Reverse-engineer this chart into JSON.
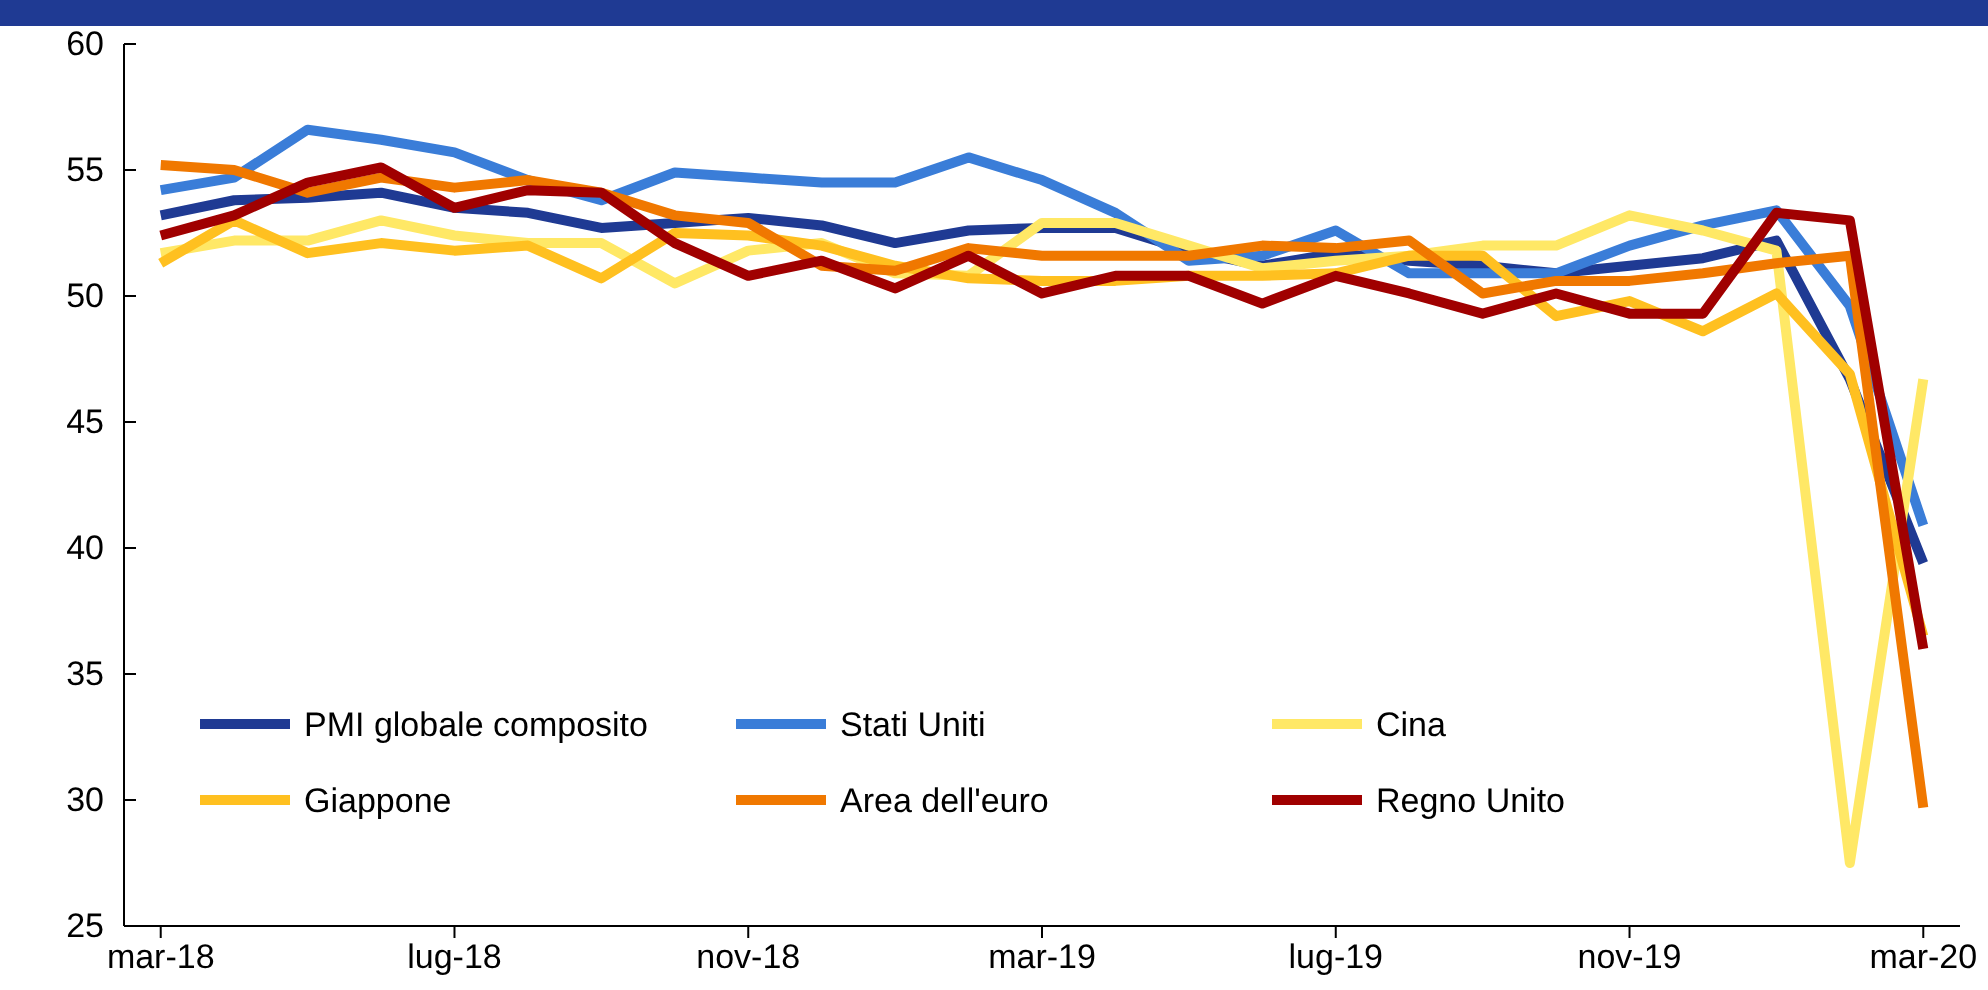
{
  "chart_data": {
    "type": "line",
    "categories": [
      "mar-18",
      null,
      null,
      null,
      "lug-18",
      null,
      null,
      null,
      "nov-18",
      null,
      null,
      null,
      "mar-19",
      null,
      null,
      null,
      "lug-19",
      null,
      null,
      null,
      "nov-19",
      null,
      null,
      null,
      "mar-20"
    ],
    "series": [
      {
        "name": "PMI globale composito",
        "color": "#1f3a93",
        "values": [
          53.2,
          53.8,
          53.9,
          54.1,
          53.5,
          53.3,
          52.7,
          52.9,
          53.1,
          52.8,
          52.1,
          52.6,
          52.7,
          52.7,
          51.8,
          51.2,
          51.7,
          51.4,
          51.2,
          50.9,
          51.2,
          51.5,
          52.2,
          46.7,
          39.4
        ]
      },
      {
        "name": "Stati Uniti",
        "color": "#3a7dd8",
        "values": [
          54.2,
          54.7,
          56.6,
          56.2,
          55.7,
          54.6,
          53.8,
          54.9,
          54.7,
          54.5,
          54.5,
          55.5,
          54.6,
          53.3,
          51.4,
          51.6,
          52.6,
          50.9,
          50.9,
          50.9,
          52.0,
          52.8,
          53.4,
          49.6,
          40.9
        ]
      },
      {
        "name": "Cina",
        "color": "#ffe866",
        "values": [
          51.7,
          52.2,
          52.2,
          53.0,
          52.4,
          52.1,
          52.1,
          50.5,
          51.8,
          52.1,
          50.9,
          50.8,
          52.9,
          52.9,
          52.0,
          51.1,
          51.4,
          51.6,
          52.0,
          52.0,
          53.2,
          52.6,
          51.8,
          27.5,
          46.7
        ]
      },
      {
        "name": "Giappone",
        "color": "#ffc020",
        "values": [
          51.3,
          53.0,
          51.7,
          52.1,
          51.8,
          52.0,
          50.7,
          52.5,
          52.4,
          52.0,
          51.2,
          50.7,
          50.6,
          50.6,
          50.8,
          50.8,
          50.9,
          51.6,
          51.6,
          49.2,
          49.8,
          48.6,
          50.1,
          46.9,
          36.5
        ]
      },
      {
        "name": "Area dell'euro",
        "color": "#f07800",
        "values": [
          55.2,
          55.0,
          54.1,
          54.7,
          54.3,
          54.6,
          54.1,
          53.2,
          52.9,
          51.2,
          51.0,
          51.9,
          51.6,
          51.6,
          51.6,
          52.0,
          51.9,
          52.2,
          50.1,
          50.6,
          50.6,
          50.9,
          51.3,
          51.6,
          29.7
        ]
      },
      {
        "name": "Regno Unito",
        "color": "#a00000",
        "values": [
          52.4,
          53.2,
          54.5,
          55.1,
          53.5,
          54.2,
          54.1,
          52.1,
          50.8,
          51.4,
          50.3,
          51.6,
          50.1,
          50.8,
          50.8,
          49.7,
          50.8,
          50.1,
          49.3,
          50.1,
          49.3,
          49.3,
          53.3,
          53.0,
          36.0
        ]
      }
    ],
    "ylim": [
      25,
      60
    ],
    "yticks": [
      25,
      30,
      35,
      40,
      45,
      50,
      55,
      60
    ],
    "grid": false,
    "legend": "bottom left",
    "marker": "none",
    "line_style": "solid"
  }
}
